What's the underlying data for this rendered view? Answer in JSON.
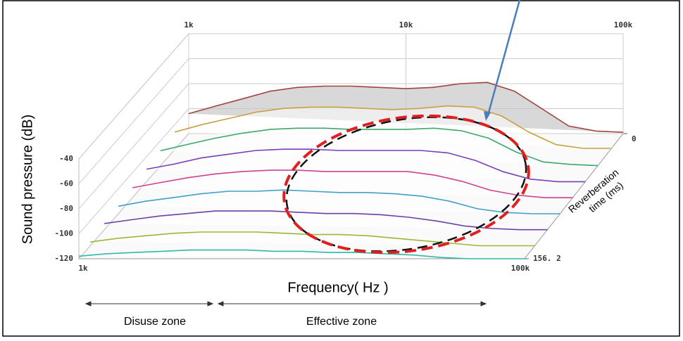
{
  "chart_data": {
    "type": "waterfall",
    "y_label": "Sound pressure (dB)",
    "x_label": "Frequency( Hz )",
    "z_label": [
      "Reverberation",
      "time (ms)"
    ],
    "annotations": [
      "Disuse zone",
      "Effective zone"
    ],
    "xlog": true,
    "xlim": [
      1000,
      100000
    ],
    "xticks": [
      {
        "value": 1000,
        "label": "1k"
      },
      {
        "value": 10000,
        "label": "10k"
      },
      {
        "value": 100000,
        "label": "100k"
      }
    ],
    "ylim": [
      -120,
      -40
    ],
    "yticks": [
      -40,
      -60,
      -80,
      -100,
      -120
    ],
    "zlim": [
      0,
      156.2
    ],
    "zticks": [
      0,
      {
        "value": 156.2,
        "label": "156. 2"
      }
    ],
    "grid": true,
    "x": [
      1000,
      1330,
      1780,
      2370,
      3160,
      4220,
      5620,
      7500,
      10000,
      13300,
      17800,
      23700,
      31600,
      42200,
      56200,
      75000,
      100000
    ],
    "series": [
      {
        "z": 0,
        "color": "#a0443c",
        "values": [
          -104,
          -98,
          -92,
          -86,
          -83,
          -82,
          -82,
          -83,
          -84,
          -83,
          -80,
          -79,
          -86,
          -100,
          -114,
          -118,
          -119
        ]
      },
      {
        "z": 20,
        "color": "#c8a040",
        "values": [
          -106,
          -100,
          -95,
          -90,
          -87,
          -86,
          -86,
          -87,
          -88,
          -87,
          -85,
          -86,
          -93,
          -106,
          -116,
          -119,
          -119
        ]
      },
      {
        "z": 40,
        "color": "#3aa86a",
        "values": [
          -108,
          -103,
          -98,
          -94,
          -91,
          -90,
          -90,
          -91,
          -91,
          -91,
          -90,
          -92,
          -98,
          -109,
          -117,
          -119,
          -120
        ]
      },
      {
        "z": 60,
        "color": "#7a3fb8",
        "values": [
          -110,
          -106,
          -101,
          -98,
          -95,
          -94,
          -94,
          -95,
          -95,
          -95,
          -95,
          -97,
          -103,
          -112,
          -118,
          -120,
          -120
        ]
      },
      {
        "z": 80,
        "color": "#d04090",
        "values": [
          -112,
          -108,
          -104,
          -101,
          -99,
          -98,
          -98,
          -99,
          -99,
          -99,
          -99,
          -102,
          -107,
          -114,
          -118,
          -120,
          -120
        ]
      },
      {
        "z": 100,
        "color": "#40a0c8",
        "values": [
          -114,
          -110,
          -107,
          -104,
          -102,
          -102,
          -101,
          -102,
          -103,
          -103,
          -104,
          -106,
          -110,
          -116,
          -119,
          -120,
          -120
        ]
      },
      {
        "z": 120,
        "color": "#6a40a8",
        "values": [
          -115,
          -112,
          -109,
          -107,
          -105,
          -105,
          -105,
          -106,
          -107,
          -107,
          -108,
          -110,
          -113,
          -117,
          -119,
          -120,
          -120
        ]
      },
      {
        "z": 140,
        "color": "#98b838",
        "values": [
          -117,
          -114,
          -112,
          -110,
          -109,
          -109,
          -109,
          -110,
          -111,
          -111,
          -112,
          -114,
          -116,
          -118,
          -120,
          -120,
          -120
        ]
      },
      {
        "z": 156.2,
        "color": "#30b8a8",
        "values": [
          -118,
          -116,
          -115,
          -114,
          -113,
          -113,
          -113,
          -114,
          -114,
          -115,
          -115,
          -116,
          -117,
          -119,
          -120,
          -120,
          -120
        ]
      }
    ]
  }
}
